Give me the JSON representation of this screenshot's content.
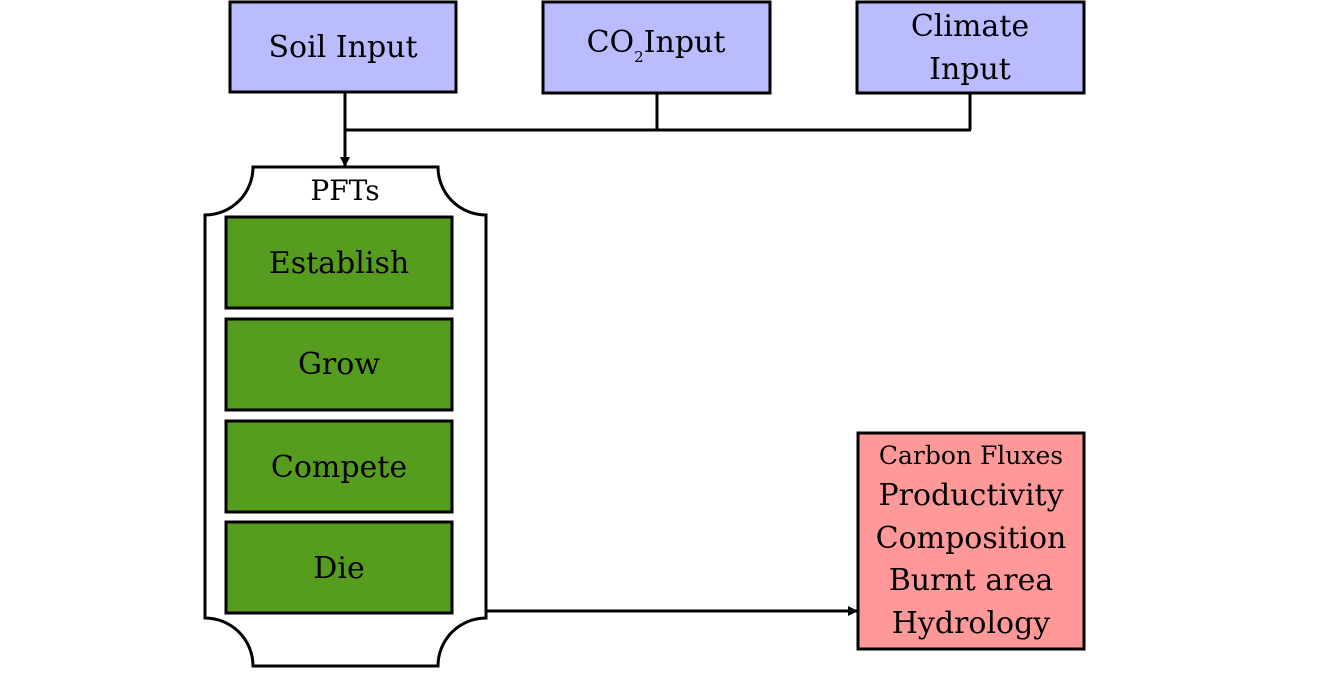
{
  "inputs": {
    "soil": "Soil Input",
    "co2_prefix": "CO",
    "co2_subscript": "2",
    "co2_suffix": "Input",
    "climate_line1": "Climate",
    "climate_line2": "Input"
  },
  "pfts": {
    "title": "PFTs",
    "steps": [
      "Establish",
      "Grow",
      "Compete",
      "Die"
    ]
  },
  "outputs": {
    "header": "Carbon Fluxes",
    "items": [
      "Productivity",
      "Composition",
      "Burnt area",
      "Hydrology"
    ]
  },
  "colors": {
    "input_fill": "#bbbbff",
    "step_fill": "#569c1e",
    "output_fill": "#ff9999",
    "stroke": "#000000"
  }
}
